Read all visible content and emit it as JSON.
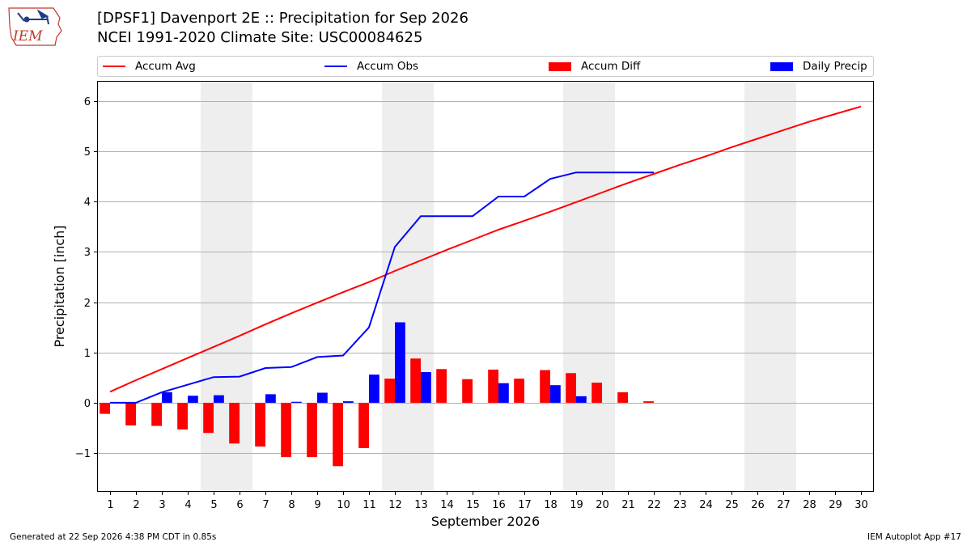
{
  "header": {
    "title_line1": "[DPSF1] Davenport 2E :: Precipitation for Sep 2026",
    "title_line2": "NCEI 1991-2020 Climate Site: USC00084625",
    "logo_text": "IEM"
  },
  "legend": {
    "accum_avg": "Accum Avg",
    "accum_obs": "Accum Obs",
    "accum_diff": "Accum Diff",
    "daily_precip": "Daily Precip"
  },
  "footer": {
    "generated": "Generated at 22 Sep 2026 4:38 PM CDT in 0.85s",
    "app": "IEM Autoplot App #17"
  },
  "colors": {
    "accum_avg": "#ff0000",
    "accum_obs": "#0000ff",
    "accum_diff": "#ff0000",
    "daily_precip": "#0000ff",
    "weekend_shade": "#eeeeee",
    "grid": "#b0b0b0"
  },
  "chart_data": {
    "type": "bar",
    "xlabel": "September 2026",
    "ylabel": "Precipitation [inch]",
    "days": [
      1,
      2,
      3,
      4,
      5,
      6,
      7,
      8,
      9,
      10,
      11,
      12,
      13,
      14,
      15,
      16,
      17,
      18,
      19,
      20,
      21,
      22,
      23,
      24,
      25,
      26,
      27,
      28,
      29,
      30
    ],
    "x_tick_labels": [
      "1",
      "2",
      "3",
      "4",
      "5",
      "6",
      "7",
      "8",
      "9",
      "10",
      "11",
      "12",
      "13",
      "14",
      "15",
      "16",
      "17",
      "18",
      "19",
      "20",
      "21",
      "22",
      "23",
      "24",
      "25",
      "26",
      "27",
      "28",
      "29",
      "30"
    ],
    "y_ticks": [
      -1,
      0,
      1,
      2,
      3,
      4,
      5,
      6
    ],
    "y_tick_labels": [
      "−1",
      "0",
      "1",
      "2",
      "3",
      "4",
      "5",
      "6"
    ],
    "xlim": [
      0.5,
      30.5
    ],
    "ylim": [
      -1.77,
      6.4
    ],
    "grid": "horizontal",
    "legend_position": "top",
    "weekend_shaded_days": [
      [
        5,
        6
      ],
      [
        12,
        13
      ],
      [
        19,
        20
      ],
      [
        26,
        27
      ]
    ],
    "series": [
      {
        "name": "Accum Avg",
        "type": "line",
        "x": [
          1,
          2,
          3,
          4,
          5,
          6,
          7,
          8,
          9,
          10,
          11,
          12,
          13,
          14,
          15,
          16,
          17,
          18,
          19,
          20,
          21,
          22,
          23,
          24,
          25,
          26,
          27,
          28,
          29,
          30
        ],
        "values": [
          0.22,
          0.45,
          0.67,
          0.89,
          1.11,
          1.33,
          1.56,
          1.78,
          1.99,
          2.2,
          2.4,
          2.62,
          2.83,
          3.04,
          3.24,
          3.44,
          3.62,
          3.8,
          3.99,
          4.18,
          4.37,
          4.55,
          4.73,
          4.9,
          5.08,
          5.25,
          5.42,
          5.59,
          5.74,
          5.89
        ]
      },
      {
        "name": "Accum Obs",
        "type": "line",
        "x": [
          1,
          2,
          3,
          4,
          5,
          6,
          7,
          8,
          9,
          10,
          11,
          12,
          13,
          14,
          15,
          16,
          17,
          18,
          19,
          20,
          21,
          22
        ],
        "values": [
          0.0,
          0.0,
          0.21,
          0.36,
          0.51,
          0.52,
          0.69,
          0.71,
          0.91,
          0.94,
          1.5,
          3.1,
          3.71,
          3.71,
          3.71,
          4.1,
          4.1,
          4.45,
          4.58,
          4.58,
          4.58,
          4.58
        ]
      },
      {
        "name": "Accum Diff",
        "type": "bar",
        "x": [
          1,
          2,
          3,
          4,
          5,
          6,
          7,
          8,
          9,
          10,
          11,
          12,
          13,
          14,
          15,
          16,
          17,
          18,
          19,
          20,
          21,
          22
        ],
        "values": [
          -0.22,
          -0.45,
          -0.46,
          -0.53,
          -0.6,
          -0.81,
          -0.87,
          -1.08,
          -1.08,
          -1.26,
          -0.9,
          0.48,
          0.88,
          0.67,
          0.47,
          0.66,
          0.48,
          0.65,
          0.59,
          0.4,
          0.21,
          0.03
        ]
      },
      {
        "name": "Daily Precip",
        "type": "bar",
        "x": [
          1,
          2,
          3,
          4,
          5,
          6,
          7,
          8,
          9,
          10,
          11,
          12,
          13,
          14,
          15,
          16,
          17,
          18,
          19,
          20,
          21,
          22
        ],
        "values": [
          0.0,
          0.0,
          0.21,
          0.14,
          0.15,
          0.0,
          0.17,
          0.02,
          0.2,
          0.03,
          0.56,
          1.6,
          0.61,
          0.0,
          0.0,
          0.39,
          0.0,
          0.35,
          0.13,
          0.0,
          0.0,
          0.0
        ]
      }
    ]
  }
}
